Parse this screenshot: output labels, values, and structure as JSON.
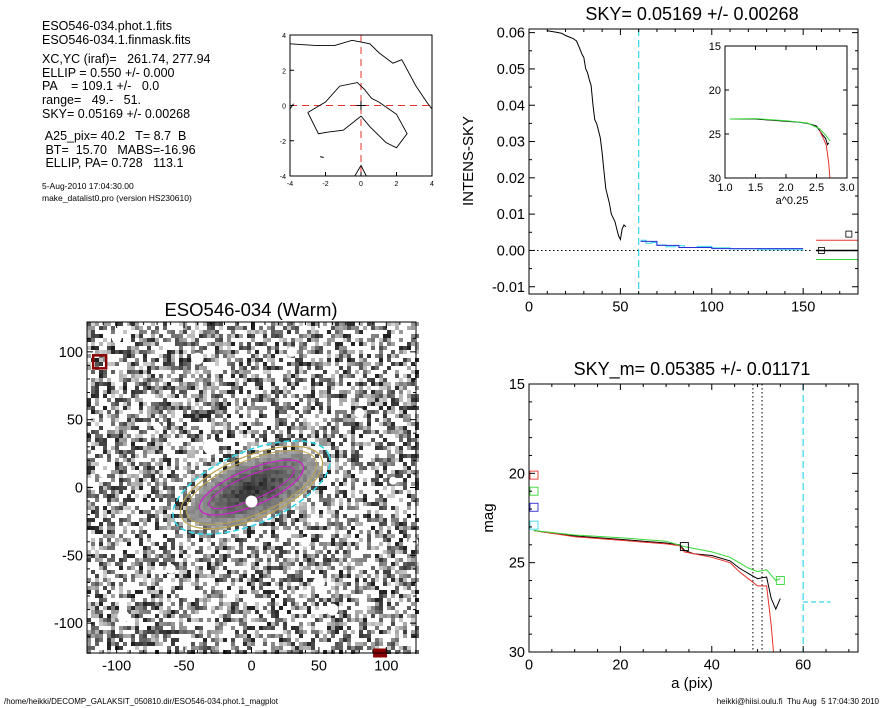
{
  "info": {
    "lines1": [
      "ESO546-034.phot.1.fits",
      "ESO546-034.1.finmask.fits"
    ],
    "lines2": [
      "XC,YC (iraf)=   261.74, 277.94",
      "ELLIP = 0.550 +/- 0.000",
      "PA    = 109.1 +/-   0.0",
      "range=   49.-   51.",
      "SKY= 0.05169 +/- 0.00268"
    ],
    "lines3": [
      " A25_pix= 40.2   T= 8.7  B",
      " BT=  15.70   MABS=-16.96",
      " ELLIP, PA= 0.728   113.1"
    ],
    "date": "5-Aug-2010 17:04:30.00",
    "program": "make_datalist0.pro (version HS230610)"
  },
  "footer": {
    "left": "/home/heikki/DECOMP_GALAKSIT_050810.dir/ESO546-034.phot.1_magplot",
    "right": "heikki@hiisi.oulu.fi  Thu Aug  5 17:04:30 2010"
  },
  "colors": {
    "cyan": "#33d6e6",
    "red": "#e8322e",
    "green": "#35d735",
    "blue": "#2b2bd9",
    "magenta": "#cc22cc",
    "olive": "#b9a24a",
    "gray": "#888888"
  },
  "chart_data": [
    {
      "id": "center_contour",
      "type": "contour",
      "title": "",
      "xlim": [
        -4,
        4
      ],
      "ylim": [
        -4,
        4
      ],
      "xticks": [
        "-4",
        "-2",
        "0",
        "2",
        "4"
      ],
      "yticks": [
        "-4",
        "-2",
        "0",
        "2",
        "4"
      ]
    },
    {
      "id": "sky_profile",
      "type": "line",
      "title": "SKY= 0.05169 +/- 0.00268",
      "xlabel": "",
      "ylabel": "INTENS-SKY",
      "xlim": [
        0,
        180
      ],
      "ylim": [
        -0.012,
        0.061
      ],
      "xticks": [
        "0",
        "50",
        "100",
        "150"
      ],
      "yticks": [
        "-0.01",
        "0.00",
        "0.01",
        "0.02",
        "0.03",
        "0.04",
        "0.05",
        "0.06"
      ],
      "sky_range_marker_x": 60,
      "series": [
        {
          "color": "black",
          "points": [
            [
              10,
              0.0605
            ],
            [
              15,
              0.0601
            ],
            [
              18,
              0.0598
            ],
            [
              20,
              0.0592
            ],
            [
              22,
              0.0588
            ],
            [
              24,
              0.0584
            ],
            [
              26,
              0.0577
            ],
            [
              28,
              0.0553
            ],
            [
              29,
              0.054
            ],
            [
              30,
              0.0532
            ],
            [
              31,
              0.05
            ],
            [
              32,
              0.049
            ],
            [
              33,
              0.047
            ],
            [
              34,
              0.0455
            ],
            [
              35,
              0.04
            ],
            [
              36,
              0.036
            ],
            [
              37,
              0.035
            ],
            [
              38,
              0.033
            ],
            [
              39,
              0.031
            ],
            [
              40,
              0.027
            ],
            [
              41,
              0.022
            ],
            [
              42,
              0.017
            ],
            [
              43,
              0.015
            ],
            [
              44,
              0.013
            ],
            [
              45,
              0.01
            ],
            [
              46,
              0.009
            ],
            [
              47,
              0.008
            ],
            [
              48,
              0.006
            ],
            [
              49,
              0.004
            ],
            [
              50,
              0.003
            ],
            [
              51,
              0.006
            ],
            [
              52,
              0.007
            ],
            [
              53,
              0.0065
            ]
          ]
        },
        {
          "color": "cyan",
          "points": [
            [
              61,
              0.0028
            ],
            [
              64,
              0.0028
            ],
            [
              64,
              0.002
            ],
            [
              67,
              0.002
            ],
            [
              67,
              0.0022
            ],
            [
              70,
              0.0022
            ],
            [
              70,
              0.0015
            ],
            [
              75,
              0.0015
            ],
            [
              75,
              0.001
            ],
            [
              80,
              0.001
            ],
            [
              80,
              0.0013
            ],
            [
              85,
              0.0013
            ],
            [
              85,
              0.0008
            ],
            [
              92,
              0.0008
            ],
            [
              92,
              0.0011
            ],
            [
              100,
              0.0011
            ],
            [
              100,
              0.0007
            ],
            [
              110,
              0.0007
            ],
            [
              110,
              0.0004
            ],
            [
              125,
              0.0004
            ],
            [
              125,
              0.0002
            ],
            [
              150,
              0.0002
            ]
          ]
        },
        {
          "color": "blue",
          "points": [
            [
              61,
              0.0025
            ],
            [
              70,
              0.0025
            ],
            [
              70,
              0.0014
            ],
            [
              82,
              0.0014
            ],
            [
              82,
              0.0008
            ],
            [
              100,
              0.0008
            ],
            [
              100,
              0.0005
            ],
            [
              150,
              0.0005
            ]
          ]
        }
      ],
      "right_side_markers": {
        "x_start": 157,
        "values": {
          "black": 0.0,
          "red": 0.0028,
          "green": -0.0025
        },
        "squares": [
          [
            160,
            0.0
          ],
          [
            175,
            0.0045
          ]
        ]
      },
      "inset": {
        "xlabel": "a^0.25",
        "xlim": [
          1.0,
          3.0
        ],
        "ylim": [
          15,
          30
        ],
        "xticks": [
          "1.0",
          "1.5",
          "2.0",
          "2.5",
          "3.0"
        ],
        "yticks": [
          "15",
          "20",
          "25",
          "30"
        ],
        "series": [
          {
            "color": "black",
            "points": [
              [
                1.08,
                23.3
              ],
              [
                1.5,
                23.3
              ],
              [
                1.8,
                23.45
              ],
              [
                2.0,
                23.55
              ],
              [
                2.2,
                23.65
              ],
              [
                2.35,
                23.8
              ],
              [
                2.5,
                24.1
              ],
              [
                2.55,
                24.6
              ],
              [
                2.6,
                25.1
              ],
              [
                2.65,
                25.5
              ],
              [
                2.68,
                26.2
              ],
              [
                2.7,
                26.0
              ]
            ]
          },
          {
            "color": "red",
            "points": [
              [
                2.55,
                24.6
              ],
              [
                2.62,
                25.6
              ],
              [
                2.66,
                26.3
              ],
              [
                2.7,
                28.3
              ],
              [
                2.72,
                30.0
              ]
            ]
          },
          {
            "color": "green",
            "points": [
              [
                1.08,
                23.3
              ],
              [
                1.5,
                23.25
              ],
              [
                2.0,
                23.5
              ],
              [
                2.35,
                23.75
              ],
              [
                2.55,
                24.4
              ],
              [
                2.62,
                24.9
              ],
              [
                2.68,
                25.4
              ],
              [
                2.72,
                25.8
              ]
            ]
          }
        ]
      }
    },
    {
      "id": "galaxy_image",
      "type": "image",
      "title": "ESO546-034 (Warm)",
      "xlim": [
        -122,
        122
      ],
      "ylim": [
        -122,
        122
      ],
      "xticks": [
        "-100",
        "-50",
        "0",
        "50",
        "100"
      ],
      "yticks": [
        "-100",
        "-50",
        "0",
        "50",
        "100"
      ],
      "ellipse_pa_deg": -23
    },
    {
      "id": "mag_profile",
      "type": "line",
      "title": "SKY_m=  0.05385 +/- 0.01171",
      "xlabel": "a (pix)",
      "ylabel": "mag",
      "xlim": [
        0,
        72
      ],
      "ylim": [
        30,
        15
      ],
      "xticks": [
        "0",
        "20",
        "40",
        "60"
      ],
      "yticks": [
        "15",
        "20",
        "25",
        "30"
      ],
      "vlines_dotted": [
        49,
        51
      ],
      "vline_dashed_cyan": 60,
      "series": [
        {
          "color": "black",
          "points": [
            [
              1,
              23.2
            ],
            [
              5,
              23.35
            ],
            [
              10,
              23.5
            ],
            [
              15,
              23.6
            ],
            [
              20,
              23.7
            ],
            [
              25,
              23.8
            ],
            [
              30,
              23.9
            ],
            [
              33,
              24.0
            ],
            [
              34,
              24.3
            ],
            [
              36,
              24.5
            ],
            [
              40,
              24.6
            ],
            [
              44,
              24.9
            ],
            [
              46,
              25.3
            ],
            [
              48,
              25.6
            ],
            [
              50,
              25.9
            ],
            [
              52,
              25.8
            ],
            [
              53,
              27.0
            ],
            [
              54,
              27.6
            ],
            [
              55,
              27.0
            ]
          ]
        },
        {
          "color": "red",
          "points": [
            [
              1,
              23.2
            ],
            [
              10,
              23.55
            ],
            [
              20,
              23.75
            ],
            [
              30,
              23.95
            ],
            [
              33,
              24.05
            ],
            [
              34,
              24.4
            ],
            [
              40,
              24.7
            ],
            [
              44,
              25.0
            ],
            [
              46,
              25.5
            ],
            [
              48,
              25.9
            ],
            [
              50,
              26.3
            ],
            [
              52,
              26.3
            ],
            [
              53,
              28.5
            ],
            [
              53.5,
              30.0
            ]
          ]
        },
        {
          "color": "green",
          "points": [
            [
              1,
              23.2
            ],
            [
              10,
              23.45
            ],
            [
              20,
              23.6
            ],
            [
              30,
              23.8
            ],
            [
              34,
              24.1
            ],
            [
              40,
              24.4
            ],
            [
              44,
              24.7
            ],
            [
              46,
              25.0
            ],
            [
              48,
              25.3
            ],
            [
              50,
              25.5
            ],
            [
              52,
              25.4
            ],
            [
              53,
              25.7
            ],
            [
              54,
              26.0
            ],
            [
              55,
              25.9
            ]
          ]
        }
      ],
      "sky_dash": {
        "x": [
          60,
          66
        ],
        "y": 27.2
      },
      "squares_left": [
        {
          "y": 20.1,
          "color": "red"
        },
        {
          "y": 21.0,
          "color": "green"
        },
        {
          "y": 21.9,
          "color": "blue"
        },
        {
          "y": 22.9,
          "color": "cyan"
        }
      ],
      "squares_other": [
        {
          "x": 34,
          "y": 24.1,
          "color": "black"
        },
        {
          "x": 55,
          "y": 26.0,
          "color": "green"
        }
      ]
    }
  ]
}
